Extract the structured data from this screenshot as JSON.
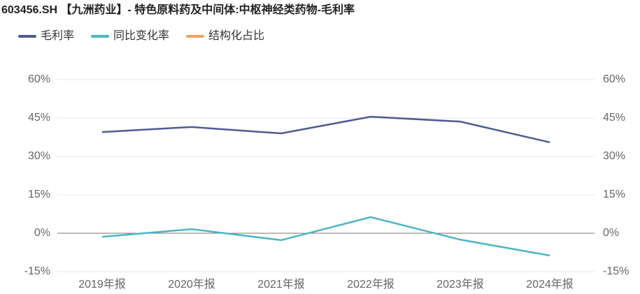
{
  "chart_data": {
    "type": "line",
    "title": "603456.SH 【九洲药业】- 特色原料药及中间体:中枢神经类药物-毛利率",
    "categories": [
      "2019年报",
      "2020年报",
      "2021年报",
      "2022年报",
      "2023年报",
      "2024年报"
    ],
    "series": [
      {
        "name": "毛利率",
        "color": "#4e5a92",
        "values": [
          39.5,
          41.5,
          39,
          45.5,
          43.6,
          35.5
        ]
      },
      {
        "name": "同比变化率",
        "color": "#4cb6c4",
        "values": [
          -1.4,
          1.6,
          -2.7,
          6.3,
          -2.5,
          -8.7
        ]
      },
      {
        "name": "结构化占比",
        "color": "#f0a45d",
        "values": [
          null,
          null,
          null,
          null,
          null,
          null
        ]
      }
    ],
    "ylim": [
      -15,
      60
    ],
    "yticks": [
      {
        "value": -15,
        "label": "-15%"
      },
      {
        "value": 0,
        "label": "0%"
      },
      {
        "value": 15,
        "label": "15%"
      },
      {
        "value": 30,
        "label": "30%"
      },
      {
        "value": 45,
        "label": "45%"
      },
      {
        "value": 60,
        "label": "60%"
      }
    ],
    "y2lim": [
      -15,
      60
    ],
    "y2ticks": [
      {
        "value": -15,
        "label": "-15%"
      },
      {
        "value": 0,
        "label": "0%"
      },
      {
        "value": 15,
        "label": "15%"
      },
      {
        "value": 30,
        "label": "30%"
      },
      {
        "value": 45,
        "label": "45%"
      },
      {
        "value": 60,
        "label": "60%"
      }
    ],
    "grid": true
  }
}
